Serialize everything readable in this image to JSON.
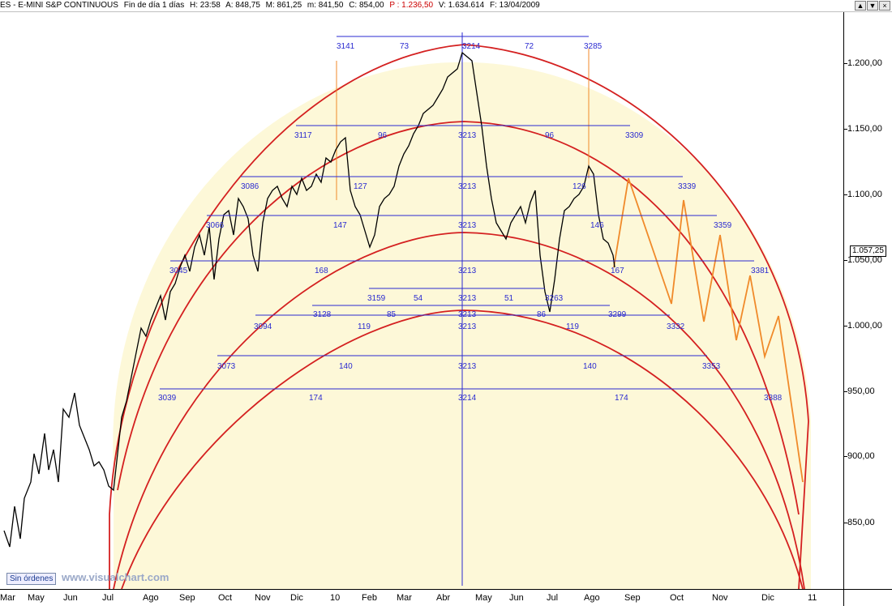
{
  "header": {
    "symbol": "ES - E-MINI S&P CONTINUOUS",
    "period": "Fin de día 1 días",
    "high": "H: 23:58",
    "open": "A: 848,75",
    "min": "M: 861,25",
    "low": "m: 841,50",
    "close": "C: 854,00",
    "percent": "P : 1.236,50",
    "volume": "V: 1.634.614",
    "date": "F: 13/04/2009"
  },
  "window_buttons": [
    "▲",
    "▼",
    "×"
  ],
  "colors": {
    "price": "#000000",
    "arc": "#d42020",
    "fill": "#fdf8d8",
    "blue": "#2a2ad0",
    "projection": "#f08a2a"
  },
  "y_axis": {
    "labels": [
      "1.200,00",
      "1.150,00",
      "1.100,00",
      "1.050,00",
      "1.000,00",
      "950,00",
      "900,00",
      "850,00"
    ],
    "current_price": "1.057,25"
  },
  "x_axis": {
    "labels": [
      "Mar",
      "May",
      "Jun",
      "Jul",
      "Ago",
      "Sep",
      "Oct",
      "Nov",
      "Dic",
      "10",
      "Feb",
      "Mar",
      "Abr",
      "May",
      "Jun",
      "Jul",
      "Ago",
      "Sep",
      "Oct",
      "Nov",
      "Dic",
      "11"
    ]
  },
  "annotations": {
    "top_range": {
      "left": "3141",
      "left_span": "73",
      "center": "3214",
      "right_span": "72",
      "right": "3285"
    },
    "row2": {
      "left": "3117",
      "left_span": "96",
      "center": "3213",
      "right_span": "96",
      "right": "3309"
    },
    "row3": {
      "left": "3086",
      "left_span": "127",
      "center": "3213",
      "right_span": "126",
      "right": "3339"
    },
    "row4": {
      "left": "3066",
      "left_span": "147",
      "center": "3213",
      "right_span": "146",
      "right": "3359"
    },
    "row5": {
      "left": "3045",
      "left_span": "168",
      "center": "3213",
      "right_span": "167",
      "right": "3381"
    },
    "row6": {
      "left": "3159",
      "left_span": "54",
      "center": "3213",
      "right_span": "51",
      "right": "3263"
    },
    "row7": {
      "left": "3128",
      "left_span": "85",
      "center": "3213",
      "right_span": "86",
      "right": "3299"
    },
    "row8": {
      "left": "3094",
      "left_span": "119",
      "center": "3213",
      "right_span": "119",
      "right": "3332"
    },
    "row9": {
      "left": "3073",
      "left_span": "140",
      "center": "3213",
      "right_span": "140",
      "right": "3353"
    },
    "row10": {
      "left": "3039",
      "left_span": "174",
      "center": "3214",
      "right_span": "174",
      "right": "3388"
    }
  },
  "status": "Sin órdenes",
  "watermark": "www.visualchart.com"
}
